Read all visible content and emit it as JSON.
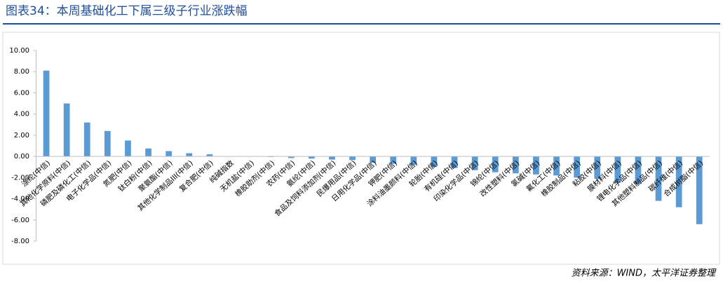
{
  "chart_data": {
    "type": "bar",
    "title": "图表34：本周基础化工下属三级子行业涨跌幅",
    "source": "资料来源：WIND，太平洋证券整理",
    "categories": [
      "涤纶(中信)",
      "其他化学原料(中信)",
      "磷肥及磷化工(中信)",
      "电子化学品(中信)",
      "氮肥(中信)",
      "钛白粉(中信)",
      "聚氨酯(中信)",
      "其他化学制品III(中信)",
      "复合肥(中信)",
      "纯碱指数",
      "无机盐(中信)",
      "橡胶助剂(中信)",
      "农药(中信)",
      "氨纶(中信)",
      "食品及饲料添加剂(中信)",
      "民爆用品(中信)",
      "日用化学品(中信)",
      "钾肥(中信)",
      "涂料油墨颜料(中信)",
      "轮胎(中信)",
      "有机硅(中信)",
      "印染化学品(中信)",
      "锦纶(中信)",
      "改性塑料(中信)",
      "氯碱(中信)",
      "氟化工(中信)",
      "橡胶制品(中信)",
      "粘胶(中信)",
      "膜材料(中信)",
      "锂电化学品(中信)",
      "其他塑料制品(中信)",
      "碳纤维(中信)",
      "合成树脂(中信)"
    ],
    "values": [
      8.1,
      5.0,
      3.2,
      2.4,
      1.5,
      0.75,
      0.5,
      0.3,
      0.2,
      0.0,
      -0.02,
      -0.05,
      -0.15,
      -0.2,
      -0.3,
      -0.35,
      -0.6,
      -0.7,
      -0.8,
      -1.0,
      -1.1,
      -1.3,
      -1.5,
      -1.6,
      -1.7,
      -1.8,
      -2.0,
      -2.1,
      -2.5,
      -2.6,
      -4.2,
      -4.8,
      -6.4
    ],
    "color": "#5b9bd5",
    "ylim": [
      -8,
      10
    ],
    "yticks": [
      {
        "value": -8,
        "label": "-8.00"
      },
      {
        "value": -6,
        "label": "-6.00"
      },
      {
        "value": -4,
        "label": "-4.00"
      },
      {
        "value": -2,
        "label": "-2.00"
      },
      {
        "value": 0,
        "label": "0.00"
      },
      {
        "value": 2,
        "label": "2.00"
      },
      {
        "value": 4,
        "label": "4.00"
      },
      {
        "value": 6,
        "label": "6.00"
      },
      {
        "value": 8,
        "label": "8.00"
      },
      {
        "value": 10,
        "label": "10.00"
      }
    ],
    "grid": false
  }
}
